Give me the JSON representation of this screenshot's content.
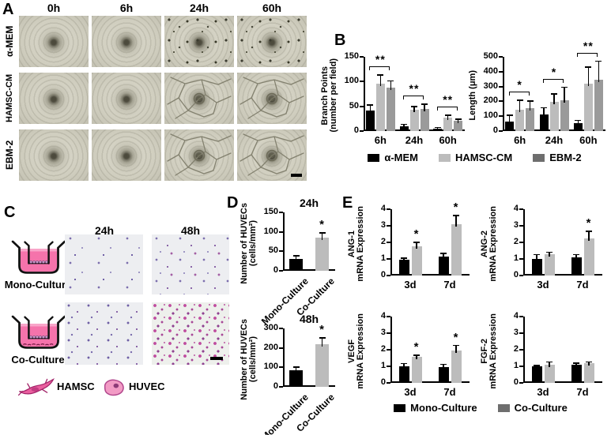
{
  "panel_a": {
    "label": "A",
    "col_headers": [
      "0h",
      "6h",
      "24h",
      "60h"
    ],
    "row_labels": [
      "α-MEM",
      "HAMSC-CM",
      "EBM-2"
    ]
  },
  "panel_b": {
    "label": "B",
    "legend": [
      {
        "label": "α-MEM",
        "color": "#000000"
      },
      {
        "label": "HAMSC-CM",
        "color": "#bcbcbc"
      },
      {
        "label": "EBM-2",
        "color": "#6e6e6e"
      }
    ]
  },
  "panel_c": {
    "label": "C",
    "col_headers": [
      "24h",
      "48h"
    ],
    "row_labels": [
      "Mono-Culture",
      "Co-Culture"
    ],
    "cell_legend": [
      {
        "label": "HAMSC"
      },
      {
        "label": "HUVEC"
      }
    ]
  },
  "panel_d": {
    "label": "D"
  },
  "panel_e": {
    "label": "E",
    "legend": [
      {
        "label": "Mono-Culture",
        "color": "#000000"
      },
      {
        "label": "Co-Culture",
        "color": "#6e6e6e"
      }
    ]
  },
  "chart_data": [
    {
      "id": "branch-points",
      "type": "bar",
      "ylabel_lines": [
        "Branch Points",
        "(number per field)"
      ],
      "ylim": [
        0,
        150
      ],
      "yticks": [
        0,
        50,
        100,
        150
      ],
      "categories": [
        "6h",
        "24h",
        "60h"
      ],
      "series": [
        {
          "name": "α-MEM",
          "color": "#000000",
          "values": [
            42,
            10,
            4
          ],
          "errors": [
            10,
            3,
            3
          ]
        },
        {
          "name": "HAMSC-CM",
          "color": "#bcbcbc",
          "values": [
            95,
            43,
            27
          ],
          "errors": [
            18,
            6,
            5
          ]
        },
        {
          "name": "EBM-2",
          "color": "#9a9a9a",
          "values": [
            88,
            44,
            20
          ],
          "errors": [
            13,
            10,
            4
          ]
        }
      ],
      "group_sig": [
        "**",
        "**",
        "**"
      ],
      "legend_position": "bottom",
      "grid": false
    },
    {
      "id": "length",
      "type": "bar",
      "ylabel_lines": [
        "Length (μm)"
      ],
      "ylim": [
        0,
        500
      ],
      "yticks": [
        0,
        100,
        200,
        300,
        400,
        500
      ],
      "categories": [
        "6h",
        "24h",
        "60h"
      ],
      "series": [
        {
          "name": "α-MEM",
          "color": "#000000",
          "values": [
            65,
            110,
            55
          ],
          "errors": [
            40,
            45,
            15
          ]
        },
        {
          "name": "HAMSC-CM",
          "color": "#bcbcbc",
          "values": [
            145,
            195,
            320
          ],
          "errors": [
            60,
            55,
            110
          ]
        },
        {
          "name": "EBM-2",
          "color": "#9a9a9a",
          "values": [
            155,
            210,
            345
          ],
          "errors": [
            45,
            85,
            125
          ]
        }
      ],
      "group_sig": [
        "*",
        "*",
        "**"
      ],
      "legend_position": "bottom",
      "grid": false
    },
    {
      "id": "huvec-migration-24h",
      "type": "bar",
      "title": "24h",
      "ylabel_lines": [
        "Number of HUVECs",
        "(cells/mm²)"
      ],
      "ylim": [
        0,
        150
      ],
      "yticks": [
        0,
        50,
        100,
        150
      ],
      "categories": [
        "Mono-Culture",
        "Co-Culture"
      ],
      "series": [
        {
          "name": "HUVECs",
          "colors": [
            "#000000",
            "#bcbcbc"
          ],
          "values": [
            30,
            85
          ],
          "errors": [
            8,
            12
          ],
          "sig": [
            "",
            "*"
          ]
        }
      ],
      "grid": false
    },
    {
      "id": "huvec-migration-48h",
      "type": "bar",
      "title": "48h",
      "ylabel_lines": [
        "Number of HUVECs",
        "(cells/mm²)"
      ],
      "ylim": [
        0,
        300
      ],
      "yticks": [
        0,
        100,
        200,
        300
      ],
      "categories": [
        "Mono-Culture",
        "Co-Culture"
      ],
      "series": [
        {
          "name": "HUVECs",
          "colors": [
            "#000000",
            "#bcbcbc"
          ],
          "values": [
            85,
            220
          ],
          "errors": [
            15,
            30
          ],
          "sig": [
            "",
            "*"
          ]
        }
      ],
      "grid": false
    },
    {
      "id": "ang1-expression",
      "type": "bar",
      "ylabel_lines": [
        "ANG-1",
        "mRNA Expression"
      ],
      "ylim": [
        0,
        4
      ],
      "yticks": [
        0,
        1,
        2,
        3,
        4
      ],
      "categories": [
        "3d",
        "7d"
      ],
      "series": [
        {
          "name": "Mono-Culture",
          "color": "#000000",
          "values": [
            0.97,
            1.15
          ],
          "errors": [
            0.08,
            0.18
          ]
        },
        {
          "name": "Co-Culture",
          "color": "#bcbcbc",
          "values": [
            1.75,
            3.1
          ],
          "errors": [
            0.25,
            0.5
          ],
          "sig": [
            "*",
            "*"
          ]
        }
      ],
      "grid": false
    },
    {
      "id": "ang2-expression",
      "type": "bar",
      "ylabel_lines": [
        "ANG-2",
        "mRNA Expression"
      ],
      "ylim": [
        0,
        4
      ],
      "yticks": [
        0,
        1,
        2,
        3,
        4
      ],
      "categories": [
        "3d",
        "7d"
      ],
      "series": [
        {
          "name": "Mono-Culture",
          "color": "#000000",
          "values": [
            1.0,
            1.1
          ],
          "errors": [
            0.25,
            0.15
          ]
        },
        {
          "name": "Co-Culture",
          "color": "#bcbcbc",
          "values": [
            1.3,
            2.25
          ],
          "errors": [
            0.1,
            0.4
          ],
          "sig": [
            "",
            "*"
          ]
        }
      ],
      "grid": false
    },
    {
      "id": "vegf-expression",
      "type": "bar",
      "ylabel_lines": [
        "VEGF",
        "mRNA Expression"
      ],
      "ylim": [
        0,
        4
      ],
      "yticks": [
        0,
        1,
        2,
        3,
        4
      ],
      "categories": [
        "3d",
        "7d"
      ],
      "series": [
        {
          "name": "Mono-Culture",
          "color": "#000000",
          "values": [
            1.0,
            0.95
          ],
          "errors": [
            0.15,
            0.15
          ]
        },
        {
          "name": "Co-Culture",
          "color": "#bcbcbc",
          "values": [
            1.55,
            1.95
          ],
          "errors": [
            0.1,
            0.3
          ],
          "sig": [
            "*",
            "*"
          ]
        }
      ],
      "grid": false
    },
    {
      "id": "fgf2-expression",
      "type": "bar",
      "ylabel_lines": [
        "FGF-2",
        "mRNA Expression"
      ],
      "ylim": [
        0,
        4
      ],
      "yticks": [
        0,
        1,
        2,
        3,
        4
      ],
      "categories": [
        "3d",
        "7d"
      ],
      "series": [
        {
          "name": "Mono-Culture",
          "color": "#000000",
          "values": [
            1.0,
            1.1
          ],
          "errors": [
            0.05,
            0.08
          ]
        },
        {
          "name": "Co-Culture",
          "color": "#bcbcbc",
          "values": [
            1.1,
            1.2
          ],
          "errors": [
            0.15,
            0.05
          ]
        }
      ],
      "grid": false
    }
  ]
}
